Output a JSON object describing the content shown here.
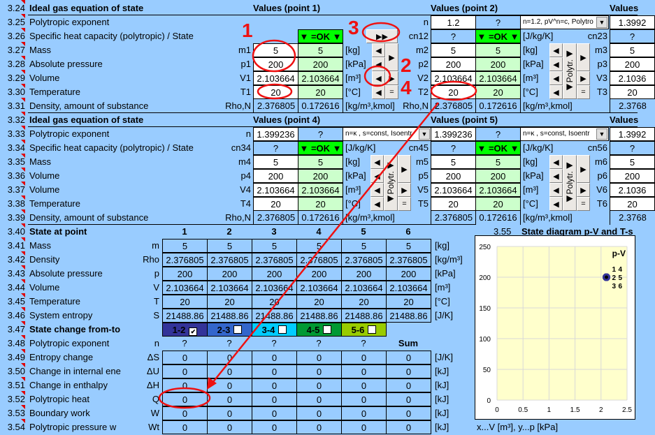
{
  "rows": [
    {
      "num": "3.24",
      "label": "Ideal gas equation of state",
      "bold": true
    },
    {
      "num": "3.25",
      "label": "Polytropic exponent"
    },
    {
      "num": "3.26",
      "label": "Specific heat capacity (polytropic) / State"
    },
    {
      "num": "3.27",
      "label": "Mass"
    },
    {
      "num": "3.28",
      "label": "Absolute pressure"
    },
    {
      "num": "3.29",
      "label": "Volume"
    },
    {
      "num": "3.30",
      "label": "Temperature"
    },
    {
      "num": "3.31",
      "label": "Density, amount of substance"
    },
    {
      "num": "3.32",
      "label": "Ideal gas equation of state",
      "bold": true
    },
    {
      "num": "3.33",
      "label": "Polytropic exponent"
    },
    {
      "num": "3.34",
      "label": "Specific heat capacity (polytropic) / State"
    },
    {
      "num": "3.35",
      "label": "Mass"
    },
    {
      "num": "3.36",
      "label": "Volume"
    },
    {
      "num": "3.37",
      "label": "Volume"
    },
    {
      "num": "3.38",
      "label": "Temperature"
    },
    {
      "num": "3.39",
      "label": "Density, amount of substance"
    },
    {
      "num": "3.40",
      "label": "State at point",
      "bold": true
    },
    {
      "num": "3.41",
      "label": "Mass"
    },
    {
      "num": "3.42",
      "label": "Density"
    },
    {
      "num": "3.43",
      "label": "Absolute pressure"
    },
    {
      "num": "3.44",
      "label": "Volume"
    },
    {
      "num": "3.45",
      "label": "Temperature"
    },
    {
      "num": "3.46",
      "label": "System entropy"
    },
    {
      "num": "3.47",
      "label": "State change from-to",
      "bold": true
    },
    {
      "num": "3.48",
      "label": "Polytropic exponent"
    },
    {
      "num": "3.49",
      "label": "Entropy change"
    },
    {
      "num": "3.50",
      "label": "Change in internal ene"
    },
    {
      "num": "3.51",
      "label": "Change in enthalpy"
    },
    {
      "num": "3.52",
      "label": "Polytropic heat"
    },
    {
      "num": "3.53",
      "label": "Boundary work"
    },
    {
      "num": "3.54",
      "label": "Polytropic pressure w"
    }
  ],
  "points": [
    {
      "header": "Values (point 1)",
      "n_sym": "",
      "n": "",
      "n2": "",
      "dropdown": "",
      "cn_sym": "",
      "cn": "",
      "state": "▼ =OK ▼",
      "cn_unit": "",
      "sym": [
        "m1",
        "p1",
        "V1",
        "T1",
        "Rho,N"
      ],
      "v": [
        "5",
        "200",
        "2.103664",
        "20",
        "2.376805"
      ],
      "v2": [
        "5",
        "200",
        "2.103664",
        "20",
        "0.172616"
      ],
      "units": [
        "[kg]",
        "[kPa]",
        "[m³]",
        "[°C]",
        "[kg/m³,kmol]"
      ]
    },
    {
      "header": "Values (point 2)",
      "n_sym": "n",
      "n": "1.2",
      "n2": "?",
      "dropdown": "n=1.2, pV^n=c, Polytro",
      "cn_sym": "cn12",
      "cn": "?",
      "state": "▼ =OK ▼",
      "cn_unit": "[J/kg/K]",
      "sym": [
        "m2",
        "p2",
        "V2",
        "T2",
        "Rho,N"
      ],
      "v": [
        "5",
        "200",
        "2.103664",
        "20",
        "2.376805"
      ],
      "v2": [
        "5",
        "200",
        "2.103664",
        "20",
        "0.172616"
      ],
      "units": [
        "[kg]",
        "[kPa]",
        "[m³]",
        "[°C]",
        "[kg/m³,kmol]"
      ]
    },
    {
      "header": "Values",
      "n_sym": "",
      "n": "1.3992",
      "cn_sym": "cn23",
      "cn": "?",
      "sym": [
        "m3",
        "p3",
        "V3",
        "T3",
        ""
      ],
      "v": [
        "5",
        "200",
        "2.1036",
        "20",
        "2.3768"
      ]
    },
    {
      "header": "Values (point 4)",
      "n_sym": "n",
      "n": "1.399236",
      "n2": "?",
      "dropdown": "n=κ   , s=const, Isoentr",
      "cn_sym": "cn34",
      "cn": "?",
      "state": "▼ =OK ▼",
      "cn_unit": "[J/kg/K]",
      "sym": [
        "m4",
        "p4",
        "V4",
        "T4",
        "Rho,N"
      ],
      "v": [
        "5",
        "200",
        "2.103664",
        "20",
        "2.376805"
      ],
      "v2": [
        "5",
        "200",
        "2.103664",
        "20",
        "0.172616"
      ],
      "units": [
        "[kg]",
        "[kPa]",
        "[m³]",
        "[°C]",
        "[kg/m³,kmol]"
      ]
    },
    {
      "header": "Values (point 5)",
      "n_sym": "",
      "n": "1.399236",
      "n2": "?",
      "dropdown": "n=κ   , s=const, Isoentr",
      "cn_sym": "cn45",
      "cn": "?",
      "state": "▼ =OK ▼",
      "cn_unit": "[J/kg/K]",
      "sym": [
        "m5",
        "p5",
        "V5",
        "T5",
        ""
      ],
      "v": [
        "5",
        "200",
        "2.103664",
        "20",
        "2.376805"
      ],
      "v2": [
        "5",
        "200",
        "2.103664",
        "20",
        "0.172616"
      ],
      "units": [
        "[kg]",
        "[kPa]",
        "[m³]",
        "[°C]",
        "[kg/m³,kmol]"
      ]
    },
    {
      "header": "Values",
      "n_sym": "",
      "n": "1.3992",
      "cn_sym": "cn56",
      "cn": "?",
      "sym": [
        "m6",
        "p6",
        "V6",
        "T6",
        ""
      ],
      "v": [
        "5",
        "200",
        "2.1036",
        "20",
        "2.3768"
      ]
    }
  ],
  "controls": {
    "left": "◀",
    "right": "▶",
    "equal": "=",
    "polytr": "◀Polytr.◀",
    "fast_forward": "▶▶",
    "dropdown_arrow": "▼"
  },
  "state_table": {
    "columns": [
      "1",
      "2",
      "3",
      "4",
      "5",
      "6"
    ],
    "rows": [
      {
        "sym": "m",
        "unit": "[kg]",
        "values": [
          "5",
          "5",
          "5",
          "5",
          "5",
          "5"
        ]
      },
      {
        "sym": "Rho",
        "unit": "[kg/m³]",
        "values": [
          "2.376805",
          "2.376805",
          "2.376805",
          "2.376805",
          "2.376805",
          "2.376805"
        ]
      },
      {
        "sym": "p",
        "unit": "[kPa]",
        "values": [
          "200",
          "200",
          "200",
          "200",
          "200",
          "200"
        ]
      },
      {
        "sym": "V",
        "unit": "[m³]",
        "values": [
          "2.103664",
          "2.103664",
          "2.103664",
          "2.103664",
          "2.103664",
          "2.103664"
        ]
      },
      {
        "sym": "T",
        "unit": "[°C]",
        "values": [
          "20",
          "20",
          "20",
          "20",
          "20",
          "20"
        ]
      },
      {
        "sym": "S",
        "unit": "[J/K]",
        "values": [
          "21488.86",
          "21488.86",
          "21488.86",
          "21488.86",
          "21488.86",
          "21488.86"
        ]
      }
    ]
  },
  "changes": {
    "buttons": [
      {
        "label": "1-2",
        "checked": true,
        "color": "#333399"
      },
      {
        "label": "2-3",
        "checked": false,
        "color": "#3366cc"
      },
      {
        "label": "3-4",
        "checked": false,
        "color": "#00ccff"
      },
      {
        "label": "4-5",
        "checked": false,
        "color": "#009933"
      },
      {
        "label": "5-6",
        "checked": false,
        "color": "#99cc00"
      }
    ],
    "check_mark": "✔",
    "n_sym": "n",
    "n_values": [
      "?",
      "?",
      "?",
      "?",
      "?"
    ],
    "sum_label": "Sum",
    "rows": [
      {
        "sym": "ΔS",
        "unit": "[J/K]",
        "values": [
          "0",
          "0",
          "0",
          "0",
          "0",
          "0"
        ]
      },
      {
        "sym": "ΔU",
        "unit": "[kJ]",
        "values": [
          "0",
          "0",
          "0",
          "0",
          "0",
          "0"
        ]
      },
      {
        "sym": "ΔH",
        "unit": "[kJ]",
        "values": [
          "0",
          "0",
          "0",
          "0",
          "0",
          "0"
        ]
      },
      {
        "sym": "Q",
        "unit": "[kJ]",
        "values": [
          "0",
          "0",
          "0",
          "0",
          "0",
          "0"
        ]
      },
      {
        "sym": "W",
        "unit": "[kJ]",
        "values": [
          "0",
          "0",
          "0",
          "0",
          "0",
          "0"
        ]
      },
      {
        "sym": "Wt",
        "unit": "[kJ]",
        "values": [
          "0",
          "0",
          "0",
          "0",
          "0",
          "0"
        ]
      }
    ]
  },
  "diagram": {
    "num": "3.55",
    "title": "State diagram p-V and T-s",
    "axes_note": "x...V [m³],   y...p [kPa]"
  },
  "chart_data": {
    "type": "scatter",
    "title": "p-V",
    "xlim": [
      0,
      2.5
    ],
    "ylim": [
      0,
      250
    ],
    "xticks": [
      "0",
      "0.5",
      "1",
      "1.5",
      "2",
      "2.5"
    ],
    "yticks": [
      "0",
      "50",
      "100",
      "150",
      "200",
      "250"
    ],
    "grid": true,
    "points": [
      {
        "label": "1",
        "x": 2.103664,
        "y": 200
      },
      {
        "label": "2",
        "x": 2.103664,
        "y": 200
      },
      {
        "label": "3",
        "x": 2.103664,
        "y": 200
      },
      {
        "label": "4",
        "x": 2.103664,
        "y": 200
      },
      {
        "label": "5",
        "x": 2.103664,
        "y": 200
      },
      {
        "label": "6",
        "x": 2.103664,
        "y": 200
      }
    ],
    "marker_color": "#333399",
    "plot_bg": "#ffffcc"
  },
  "annotations": {
    "labels": [
      "1",
      "2",
      "3",
      "4"
    ],
    "color": "#ee1111"
  }
}
